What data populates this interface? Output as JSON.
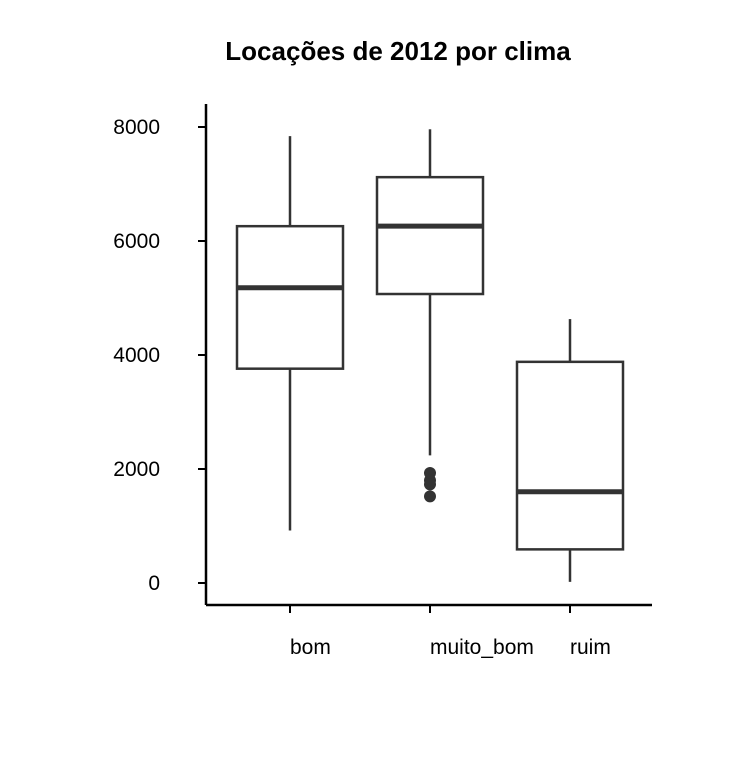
{
  "chart_data": {
    "type": "boxplot",
    "title": "Locações de 2012 por clima",
    "xlabel": "",
    "ylabel": "",
    "ylim": [
      -400,
      8400
    ],
    "yticks": [
      0,
      2000,
      4000,
      6000,
      8000
    ],
    "grid": false,
    "categories": [
      "bom",
      "muito_bom",
      "ruim"
    ],
    "boxes": [
      {
        "category": "bom",
        "whisker_low": 920,
        "q1": 3760,
        "median": 5180,
        "q3": 6260,
        "whisker_high": 7840,
        "outliers": []
      },
      {
        "category": "muito_bom",
        "whisker_low": 2240,
        "q1": 5070,
        "median": 6260,
        "q3": 7120,
        "whisker_high": 7960,
        "outliers": [
          1930,
          1800,
          1730,
          1520
        ]
      },
      {
        "category": "ruim",
        "whisker_low": 20,
        "q1": 590,
        "median": 1600,
        "q3": 3880,
        "whisker_high": 4630,
        "outliers": []
      }
    ],
    "colors": {
      "line": "#333333",
      "axis": "#000000",
      "outlier": "#333333"
    }
  }
}
